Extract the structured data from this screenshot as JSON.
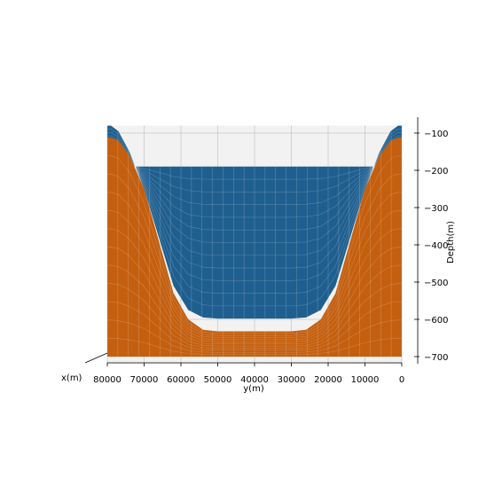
{
  "chart_data": {
    "type": "surface3d",
    "title": "",
    "xlabel": "x(m)",
    "ylabel": "y(m)",
    "zlabel": "Depth(m)",
    "y_ticks": [
      80000,
      70000,
      60000,
      50000,
      40000,
      30000,
      20000,
      10000,
      0
    ],
    "z_ticks": [
      -100,
      -200,
      -300,
      -400,
      -500,
      -600,
      -700
    ],
    "ylim": [
      0,
      80000
    ],
    "zlim": [
      -720,
      -80
    ],
    "grid": true,
    "view": "elevation 0, looking along x (x axis foreshortened)",
    "series": [
      {
        "color": "#1f5f8f",
        "y": [
          80000,
          79000,
          77000,
          74000,
          70000,
          66000,
          62000,
          58000,
          54000,
          50000,
          45000,
          40000,
          35000,
          30000,
          26000,
          22000,
          18000,
          14000,
          10000,
          6000,
          3000,
          1000,
          0
        ],
        "z": [
          -80,
          -80,
          -95,
          -150,
          -250,
          -380,
          -510,
          -575,
          -595,
          -598,
          -598,
          -598,
          -598,
          -598,
          -595,
          -575,
          -510,
          -380,
          -250,
          -150,
          -95,
          -80,
          -80
        ],
        "top_edge_z": -190
      },
      {
        "color": "#c45f0f",
        "y": [
          80000,
          79000,
          77000,
          74000,
          70000,
          66000,
          62000,
          58000,
          54000,
          50000,
          45000,
          40000,
          35000,
          30000,
          26000,
          22000,
          18000,
          14000,
          10000,
          6000,
          3000,
          1000,
          0
        ],
        "z": [
          -112,
          -112,
          -120,
          -160,
          -250,
          -390,
          -530,
          -600,
          -628,
          -632,
          -632,
          -632,
          -632,
          -632,
          -628,
          -600,
          -530,
          -390,
          -250,
          -160,
          -120,
          -112,
          -112
        ],
        "bottom_z": -700
      }
    ]
  }
}
